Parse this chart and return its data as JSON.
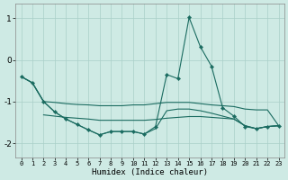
{
  "xlabel": "Humidex (Indice chaleur)",
  "xlim": [
    -0.5,
    23.5
  ],
  "ylim": [
    -2.35,
    1.35
  ],
  "xticks": [
    0,
    1,
    2,
    3,
    4,
    5,
    6,
    7,
    8,
    9,
    10,
    11,
    12,
    13,
    14,
    15,
    16,
    17,
    18,
    19,
    20,
    21,
    22,
    23
  ],
  "yticks": [
    -2,
    -1,
    0,
    1
  ],
  "background_color": "#ceeae4",
  "grid_color": "#aacfc8",
  "line_color": "#1a6b60",
  "series": {
    "main_with_markers": [
      [
        0,
        -0.4
      ],
      [
        1,
        -0.55
      ],
      [
        2,
        -1.0
      ],
      [
        3,
        -1.25
      ],
      [
        4,
        -1.42
      ],
      [
        5,
        -1.55
      ],
      [
        6,
        -1.68
      ],
      [
        7,
        -1.8
      ],
      [
        8,
        -1.72
      ],
      [
        9,
        -1.72
      ],
      [
        10,
        -1.72
      ],
      [
        11,
        -1.78
      ],
      [
        12,
        -1.6
      ],
      [
        13,
        -0.35
      ],
      [
        14,
        -0.45
      ],
      [
        15,
        1.02
      ],
      [
        16,
        0.32
      ],
      [
        17,
        -0.15
      ],
      [
        18,
        -1.15
      ],
      [
        19,
        -1.35
      ],
      [
        20,
        -1.6
      ],
      [
        21,
        -1.65
      ],
      [
        22,
        -1.6
      ],
      [
        23,
        -1.58
      ]
    ],
    "band_top": [
      [
        0,
        -0.4
      ],
      [
        1,
        -0.55
      ],
      [
        2,
        -1.0
      ],
      [
        3,
        -1.02
      ],
      [
        4,
        -1.05
      ],
      [
        5,
        -1.07
      ],
      [
        6,
        -1.08
      ],
      [
        7,
        -1.1
      ],
      [
        8,
        -1.1
      ],
      [
        9,
        -1.1
      ],
      [
        10,
        -1.08
      ],
      [
        11,
        -1.08
      ],
      [
        12,
        -1.05
      ],
      [
        13,
        -1.02
      ],
      [
        14,
        -1.02
      ],
      [
        15,
        -1.02
      ],
      [
        16,
        -1.05
      ],
      [
        17,
        -1.08
      ],
      [
        18,
        -1.1
      ],
      [
        19,
        -1.12
      ],
      [
        20,
        -1.18
      ],
      [
        21,
        -1.2
      ],
      [
        22,
        -1.2
      ],
      [
        23,
        -1.58
      ]
    ],
    "band_mid": [
      [
        2,
        -1.32
      ],
      [
        3,
        -1.35
      ],
      [
        4,
        -1.38
      ],
      [
        5,
        -1.4
      ],
      [
        6,
        -1.42
      ],
      [
        7,
        -1.45
      ],
      [
        8,
        -1.45
      ],
      [
        9,
        -1.45
      ],
      [
        10,
        -1.45
      ],
      [
        11,
        -1.45
      ],
      [
        12,
        -1.43
      ],
      [
        13,
        -1.4
      ],
      [
        14,
        -1.38
      ],
      [
        15,
        -1.36
      ],
      [
        16,
        -1.36
      ],
      [
        17,
        -1.38
      ],
      [
        18,
        -1.4
      ],
      [
        19,
        -1.42
      ],
      [
        20,
        -1.58
      ],
      [
        21,
        -1.65
      ],
      [
        22,
        -1.6
      ],
      [
        23,
        -1.58
      ]
    ],
    "band_bottom": [
      [
        0,
        -0.4
      ],
      [
        1,
        -0.55
      ],
      [
        2,
        -1.0
      ],
      [
        3,
        -1.25
      ],
      [
        4,
        -1.42
      ],
      [
        5,
        -1.55
      ],
      [
        6,
        -1.68
      ],
      [
        7,
        -1.8
      ],
      [
        8,
        -1.72
      ],
      [
        9,
        -1.72
      ],
      [
        10,
        -1.72
      ],
      [
        11,
        -1.78
      ],
      [
        12,
        -1.65
      ],
      [
        13,
        -1.22
      ],
      [
        14,
        -1.18
      ],
      [
        15,
        -1.18
      ],
      [
        16,
        -1.22
      ],
      [
        17,
        -1.28
      ],
      [
        18,
        -1.35
      ],
      [
        19,
        -1.42
      ],
      [
        20,
        -1.58
      ],
      [
        21,
        -1.65
      ],
      [
        22,
        -1.6
      ],
      [
        23,
        -1.58
      ]
    ]
  }
}
